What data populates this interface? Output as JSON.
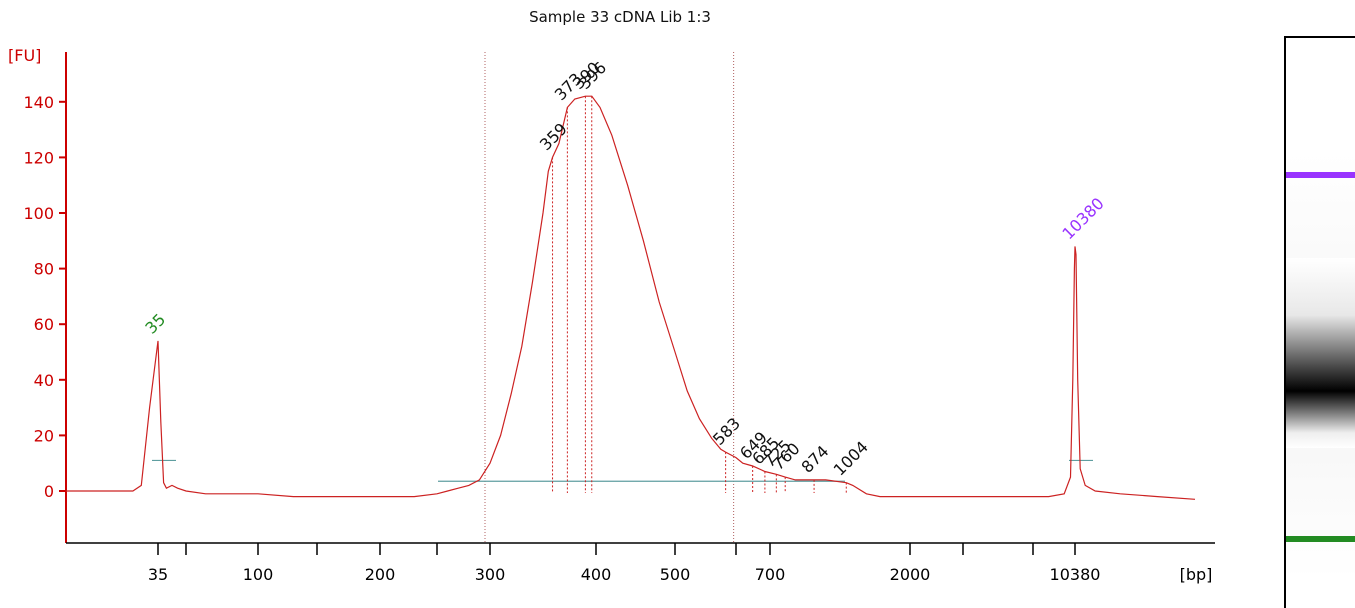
{
  "chart_data": {
    "type": "line",
    "title": "Sample 33 cDNA Lib 1:3",
    "ylabel": "[FU]",
    "xlabel": "[bp]",
    "ylim": [
      -20,
      150
    ],
    "yticks": [
      "0",
      "20",
      "40",
      "60",
      "80",
      "100",
      "120",
      "140"
    ],
    "xtick_labels": [
      "35",
      "100",
      "200",
      "300",
      "400",
      "500",
      "700",
      "2000",
      "10380"
    ],
    "grid": false,
    "colors": {
      "axis": "#cc0000",
      "trace": "#cc2222",
      "lower_marker": "#228b22",
      "upper_marker": "#9933ff",
      "baseline": "#5f9ea0"
    },
    "markers": [
      {
        "label": "35",
        "bp": 35,
        "fu": 54,
        "color": "#228b22"
      },
      {
        "label": "10380",
        "bp": 10380,
        "fu": 88,
        "color": "#9933ff"
      }
    ],
    "peaks": [
      {
        "label": "359",
        "bp": 359,
        "fu": 120
      },
      {
        "label": "373",
        "bp": 373,
        "fu": 138
      },
      {
        "label": "390",
        "bp": 390,
        "fu": 142
      },
      {
        "label": "396",
        "bp": 396,
        "fu": 142
      },
      {
        "label": "583",
        "bp": 583,
        "fu": 14
      },
      {
        "label": "649",
        "bp": 649,
        "fu": 9
      },
      {
        "label": "685",
        "bp": 685,
        "fu": 7
      },
      {
        "label": "725",
        "bp": 725,
        "fu": 6
      },
      {
        "label": "760",
        "bp": 760,
        "fu": 5
      },
      {
        "label": "874",
        "bp": 874,
        "fu": 4
      },
      {
        "label": "1004",
        "bp": 1004,
        "fu": 3
      }
    ],
    "region": {
      "from_bp": 300,
      "to_bp": 583
    },
    "series": [
      {
        "points": [
          [
            24,
            0
          ],
          [
            28,
            0
          ],
          [
            30,
            0
          ],
          [
            32,
            0
          ],
          [
            33,
            2
          ],
          [
            34,
            30
          ],
          [
            35,
            54
          ],
          [
            36,
            25
          ],
          [
            37,
            3
          ],
          [
            38,
            1
          ],
          [
            40,
            2
          ],
          [
            42,
            1
          ],
          [
            45,
            0
          ],
          [
            60,
            -1
          ],
          [
            80,
            -1
          ],
          [
            100,
            -1
          ],
          [
            130,
            -2
          ],
          [
            160,
            -2
          ],
          [
            200,
            -2
          ],
          [
            230,
            -2
          ],
          [
            250,
            -1
          ],
          [
            260,
            0
          ],
          [
            270,
            1
          ],
          [
            280,
            2
          ],
          [
            290,
            4
          ],
          [
            300,
            10
          ],
          [
            310,
            20
          ],
          [
            320,
            35
          ],
          [
            330,
            52
          ],
          [
            340,
            75
          ],
          [
            350,
            100
          ],
          [
            355,
            115
          ],
          [
            359,
            120
          ],
          [
            365,
            125
          ],
          [
            373,
            138
          ],
          [
            380,
            141
          ],
          [
            390,
            142
          ],
          [
            396,
            142
          ],
          [
            405,
            138
          ],
          [
            420,
            128
          ],
          [
            440,
            110
          ],
          [
            460,
            90
          ],
          [
            480,
            68
          ],
          [
            500,
            50
          ],
          [
            520,
            36
          ],
          [
            540,
            26
          ],
          [
            560,
            19
          ],
          [
            575,
            15
          ],
          [
            583,
            14
          ],
          [
            600,
            12
          ],
          [
            620,
            10
          ],
          [
            649,
            9
          ],
          [
            685,
            7
          ],
          [
            725,
            6
          ],
          [
            760,
            5
          ],
          [
            800,
            4
          ],
          [
            874,
            4
          ],
          [
            920,
            4
          ],
          [
            1004,
            3
          ],
          [
            1100,
            2
          ],
          [
            1300,
            -1
          ],
          [
            1500,
            -2
          ],
          [
            2000,
            -2
          ],
          [
            3000,
            -2
          ],
          [
            5000,
            -2
          ],
          [
            7000,
            -2
          ],
          [
            9000,
            -1
          ],
          [
            9800,
            5
          ],
          [
            10100,
            40
          ],
          [
            10300,
            80
          ],
          [
            10380,
            88
          ],
          [
            10460,
            85
          ],
          [
            10600,
            40
          ],
          [
            10800,
            8
          ],
          [
            11200,
            2
          ],
          [
            12000,
            0
          ],
          [
            14000,
            -1
          ],
          [
            17000,
            -2
          ],
          [
            20000,
            -3
          ]
        ]
      }
    ]
  }
}
